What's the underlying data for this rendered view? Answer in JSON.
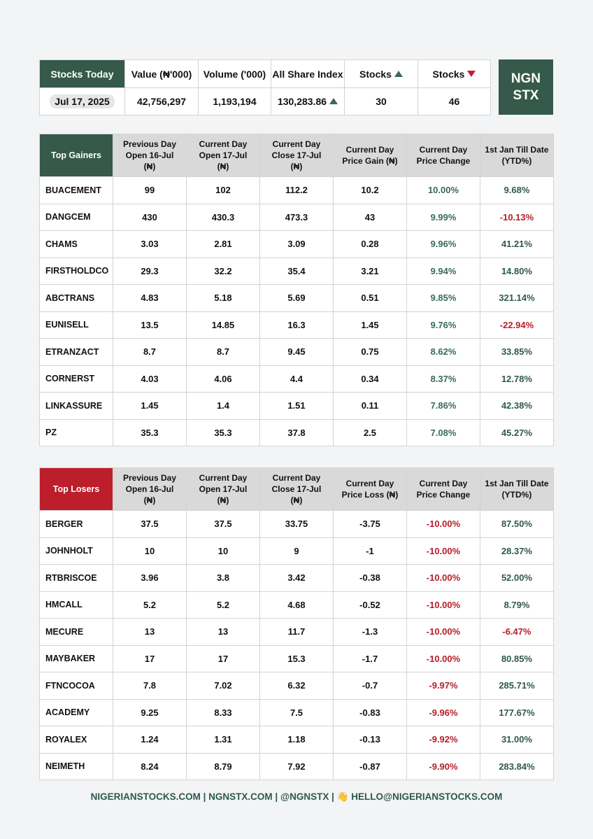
{
  "summary": {
    "headers": [
      "Stocks Today",
      "Value (₦'000)",
      "Volume ('000)",
      "All Share Index",
      "Stocks",
      "Stocks"
    ],
    "values": [
      "Jul 17, 2025",
      "42,756,297",
      "1,193,194",
      "130,283.86",
      "30",
      "46"
    ]
  },
  "logo": [
    "NGN",
    "STX"
  ],
  "gainers": {
    "title": "Top Gainers",
    "headers": [
      "Previous Day\nOpen 16-Jul\n(₦)",
      "Current Day\nOpen 17-Jul\n(₦)",
      "Current Day\nClose 17-Jul\n(₦)",
      "Current Day\nPrice Gain (₦)",
      "Current Day\nPrice Change",
      "1st Jan Till Date\n(YTD%)"
    ],
    "rows": [
      [
        "BUACEMENT",
        "99",
        "102",
        "112.2",
        "10.2",
        "10.00%",
        "9.68%"
      ],
      [
        "DANGCEM",
        "430",
        "430.3",
        "473.3",
        "43",
        "9.99%",
        "-10.13%"
      ],
      [
        "CHAMS",
        "3.03",
        "2.81",
        "3.09",
        "0.28",
        "9.96%",
        "41.21%"
      ],
      [
        "FIRSTHOLDCO",
        "29.3",
        "32.2",
        "35.4",
        "3.21",
        "9.94%",
        "14.80%"
      ],
      [
        "ABCTRANS",
        "4.83",
        "5.18",
        "5.69",
        "0.51",
        "9.85%",
        "321.14%"
      ],
      [
        "EUNISELL",
        "13.5",
        "14.85",
        "16.3",
        "1.45",
        "9.76%",
        "-22.94%"
      ],
      [
        "ETRANZACT",
        "8.7",
        "8.7",
        "9.45",
        "0.75",
        "8.62%",
        "33.85%"
      ],
      [
        "CORNERST",
        "4.03",
        "4.06",
        "4.4",
        "0.34",
        "8.37%",
        "12.78%"
      ],
      [
        "LINKASSURE",
        "1.45",
        "1.4",
        "1.51",
        "0.11",
        "7.86%",
        "42.38%"
      ],
      [
        "PZ",
        "35.3",
        "35.3",
        "37.8",
        "2.5",
        "7.08%",
        "45.27%"
      ]
    ]
  },
  "losers": {
    "title": "Top Losers",
    "headers": [
      "Previous Day\nOpen 16-Jul\n(₦)",
      "Current Day\nOpen 17-Jul\n(₦)",
      "Current Day\nClose 17-Jul\n(₦)",
      "Current Day\nPrice Loss (₦)",
      "Current Day\nPrice Change",
      "1st Jan Till Date\n(YTD%)"
    ],
    "rows": [
      [
        "BERGER",
        "37.5",
        "37.5",
        "33.75",
        "-3.75",
        "-10.00%",
        "87.50%"
      ],
      [
        "JOHNHOLT",
        "10",
        "10",
        "9",
        "-1",
        "-10.00%",
        "28.37%"
      ],
      [
        "RTBRISCOE",
        "3.96",
        "3.8",
        "3.42",
        "-0.38",
        "-10.00%",
        "52.00%"
      ],
      [
        "HMCALL",
        "5.2",
        "5.2",
        "4.68",
        "-0.52",
        "-10.00%",
        "8.79%"
      ],
      [
        "MECURE",
        "13",
        "13",
        "11.7",
        "-1.3",
        "-10.00%",
        "-6.47%"
      ],
      [
        "MAYBAKER",
        "17",
        "17",
        "15.3",
        "-1.7",
        "-10.00%",
        "80.85%"
      ],
      [
        "FTNCOCOA",
        "7.8",
        "7.02",
        "6.32",
        "-0.7",
        "-9.97%",
        "285.71%"
      ],
      [
        "ACADEMY",
        "9.25",
        "8.33",
        "7.5",
        "-0.83",
        "-9.96%",
        "177.67%"
      ],
      [
        "ROYALEX",
        "1.24",
        "1.31",
        "1.18",
        "-0.13",
        "-9.92%",
        "31.00%"
      ],
      [
        "NEIMETH",
        "8.24",
        "8.79",
        "7.92",
        "-0.87",
        "-9.90%",
        "283.84%"
      ]
    ]
  },
  "footer": "NIGERIANSTOCKS.COM | NGNSTX.COM | @NGNSTX | 👋 HELLO@NIGERIANSTOCKS.COM"
}
